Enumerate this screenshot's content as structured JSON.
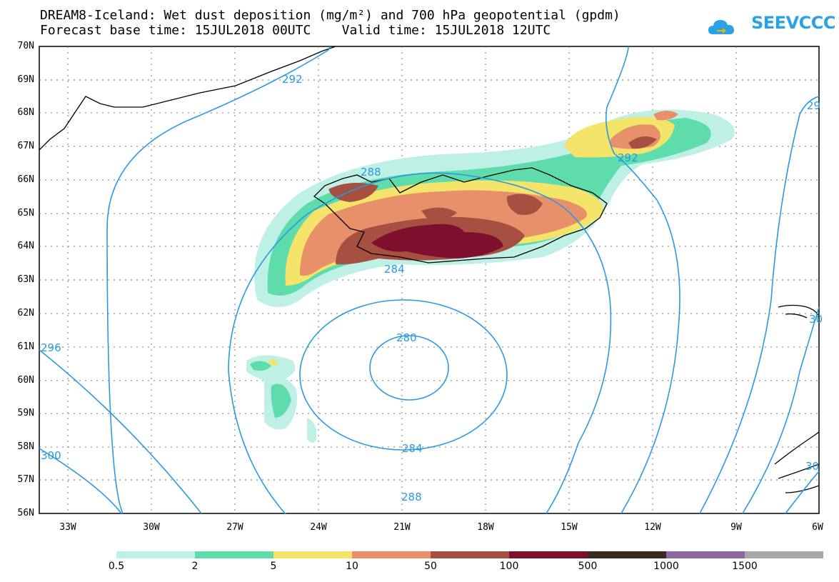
{
  "header": {
    "title_line1": "DREAM8-Iceland: Wet dust deposition (mg/m²) and 700 hPa geopotential (gpdm)",
    "title_line2": "Forecast base time: 15JUL2018 00UTC    Valid time: 15JUL2018 12UTC",
    "logo_text": "SEEVCCC"
  },
  "map": {
    "lat_labels": [
      "70N",
      "69N",
      "68N",
      "67N",
      "66N",
      "65N",
      "64N",
      "63N",
      "62N",
      "61N",
      "60N",
      "59N",
      "58N",
      "57N",
      "56N"
    ],
    "lon_labels": [
      "33W",
      "30W",
      "27W",
      "24W",
      "21W",
      "18W",
      "15W",
      "12W",
      "9W",
      "6W"
    ],
    "contour_labels": [
      "292",
      "288",
      "284",
      "280",
      "284",
      "288",
      "292",
      "29",
      "296",
      "300",
      "30",
      "30"
    ]
  },
  "legend": {
    "labels": [
      "0.5",
      "2",
      "5",
      "10",
      "50",
      "100",
      "500",
      "1000",
      "1500"
    ],
    "colors": [
      "#bff0e6",
      "#5fdcac",
      "#f5e46a",
      "#e8906a",
      "#a55040",
      "#7e0f2e",
      "#3a2a1e",
      "#8c6aa0",
      "#a8a8a8"
    ]
  },
  "chart_data": {
    "type": "heatmap",
    "title": "DREAM8-Iceland: Wet dust deposition (mg/m²) and 700 hPa geopotential (gpdm)",
    "x_range": [
      "34W",
      "6W"
    ],
    "y_range": [
      "56N",
      "70N"
    ],
    "contour_levels_gpdm": [
      280,
      284,
      288,
      292,
      296,
      300
    ],
    "color_scale_mg_m2": [
      0.5,
      2,
      5,
      10,
      50,
      100,
      500,
      1000,
      1500
    ],
    "grid": true
  }
}
